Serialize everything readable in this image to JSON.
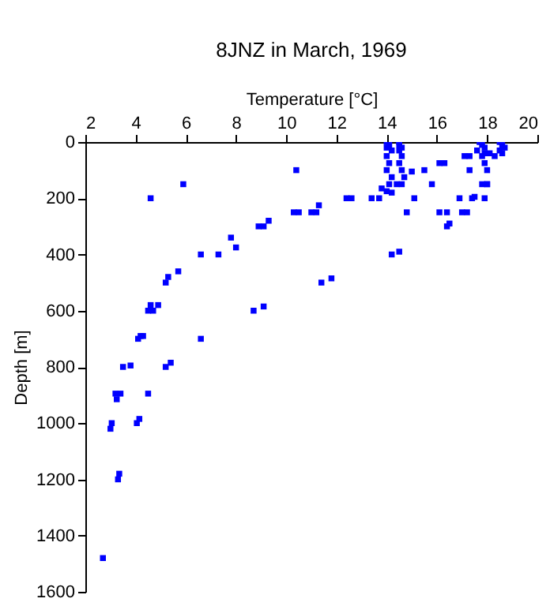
{
  "chart_data": {
    "type": "scatter",
    "title": "8JNZ in March, 1969",
    "xlabel": "Temperature [°C]",
    "ylabel": "Depth [m]",
    "xlim": [
      2,
      20
    ],
    "xticks": [
      2,
      4,
      6,
      8,
      10,
      12,
      14,
      16,
      18,
      20
    ],
    "ylim": [
      1600,
      0
    ],
    "yticks": [
      0,
      200,
      400,
      600,
      800,
      1000,
      1200,
      1400,
      1600
    ],
    "grid": false,
    "marker": "square",
    "series": [
      {
        "color": "#0000ff",
        "x": [
          14.0,
          14.1,
          14.0,
          14.2,
          14.0,
          14.1,
          14.0,
          14.2,
          14.1,
          14.0,
          14.5,
          14.5,
          14.6,
          14.5,
          14.6,
          14.5,
          14.6,
          14.6,
          17.7,
          17.8,
          17.9,
          17.6,
          17.9,
          17.8,
          17.9,
          18.0,
          18.0,
          17.9,
          18.5,
          18.6,
          18.7,
          18.5,
          18.6,
          10.4,
          5.9,
          4.6,
          15.0,
          15.5,
          15.8,
          14.7,
          14.4,
          13.8,
          14.2,
          12.4,
          12.6,
          13.4,
          13.7,
          15.1,
          16.1,
          16.3,
          17.1,
          17.3,
          16.9,
          17.4,
          17.5,
          17.3,
          17.8,
          18.0,
          18.3,
          18.1,
          10.3,
          10.5,
          11.0,
          11.2,
          11.3,
          14.8,
          16.1,
          16.4,
          17.0,
          17.2,
          16.5,
          16.4,
          9.3,
          8.9,
          9.1,
          7.8,
          8.0,
          6.6,
          7.3,
          14.2,
          14.5,
          5.2,
          5.3,
          5.7,
          11.4,
          11.8,
          4.6,
          4.9,
          4.5,
          4.7,
          8.7,
          9.1,
          4.1,
          4.2,
          4.3,
          6.6,
          3.5,
          3.8,
          5.2,
          5.4,
          3.2,
          3.4,
          3.25,
          4.5,
          3.05,
          3.0,
          4.05,
          4.15,
          3.3,
          3.35,
          2.7
        ],
        "values": [
          0,
          10,
          20,
          30,
          50,
          75,
          100,
          125,
          150,
          175,
          0,
          10,
          20,
          30,
          50,
          75,
          100,
          150,
          0,
          10,
          20,
          30,
          40,
          50,
          75,
          100,
          150,
          200,
          0,
          10,
          20,
          30,
          40,
          100,
          150,
          200,
          105,
          100,
          150,
          125,
          150,
          165,
          180,
          200,
          200,
          200,
          200,
          200,
          75,
          75,
          50,
          50,
          200,
          200,
          195,
          100,
          150,
          150,
          50,
          40,
          250,
          250,
          250,
          250,
          225,
          250,
          250,
          250,
          250,
          250,
          290,
          300,
          280,
          300,
          300,
          340,
          375,
          400,
          400,
          400,
          390,
          500,
          480,
          460,
          500,
          485,
          580,
          580,
          600,
          600,
          600,
          585,
          700,
          690,
          690,
          700,
          800,
          795,
          800,
          785,
          895,
          895,
          915,
          895,
          1000,
          1020,
          1000,
          985,
          1200,
          1180,
          1480
        ]
      }
    ]
  }
}
